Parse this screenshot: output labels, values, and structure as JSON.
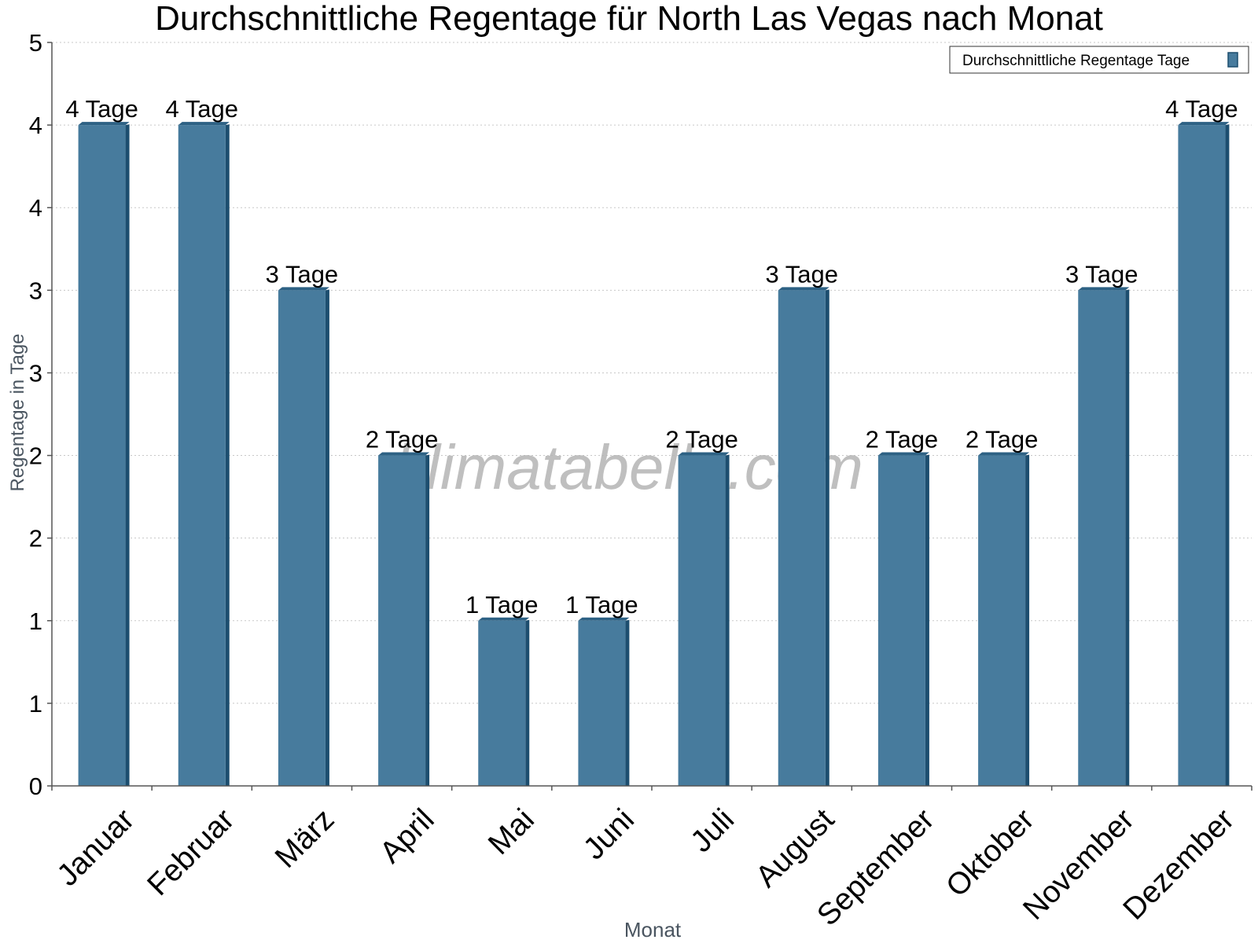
{
  "chart_data": {
    "type": "bar",
    "title": "Durchschnittliche Regentage für North Las Vegas nach Monat",
    "xlabel": "Monat",
    "ylabel": "Regentage in Tage",
    "watermark": "klimatabelle.com",
    "categories": [
      "Januar",
      "Februar",
      "März",
      "April",
      "Mai",
      "Juni",
      "Juli",
      "August",
      "September",
      "Oktober",
      "November",
      "Dezember"
    ],
    "series": [
      {
        "name": "Durchschnittliche Regentage Tage",
        "values": [
          4,
          4,
          3,
          2,
          1,
          1,
          2,
          3,
          2,
          2,
          3,
          4
        ],
        "data_labels": [
          "4 Tage",
          "4 Tage",
          "3 Tage",
          "2 Tage",
          "1 Tage",
          "1 Tage",
          "2 Tage",
          "3 Tage",
          "2 Tage",
          "2 Tage",
          "3 Tage",
          "4 Tage"
        ]
      }
    ],
    "ylim": [
      0,
      4.5
    ],
    "y_ticks": [
      {
        "value": 0,
        "label": "0"
      },
      {
        "value": 0.5,
        "label": "1"
      },
      {
        "value": 1,
        "label": "1"
      },
      {
        "value": 1.5,
        "label": "2"
      },
      {
        "value": 2,
        "label": "2"
      },
      {
        "value": 2.5,
        "label": "3"
      },
      {
        "value": 3,
        "label": "3"
      },
      {
        "value": 3.5,
        "label": "4"
      },
      {
        "value": 4,
        "label": "4"
      },
      {
        "value": 4.5,
        "label": "5"
      }
    ],
    "grid": true,
    "legend_position": "top-right",
    "colors": {
      "bar_face": "#477b9d",
      "bar_side": "#1d4e6f",
      "bar_top": "#2d6184",
      "grid": "#c8c8c8",
      "axis": "#555555",
      "axis_label": "#4a5560",
      "watermark": "#b4b4b4"
    }
  }
}
